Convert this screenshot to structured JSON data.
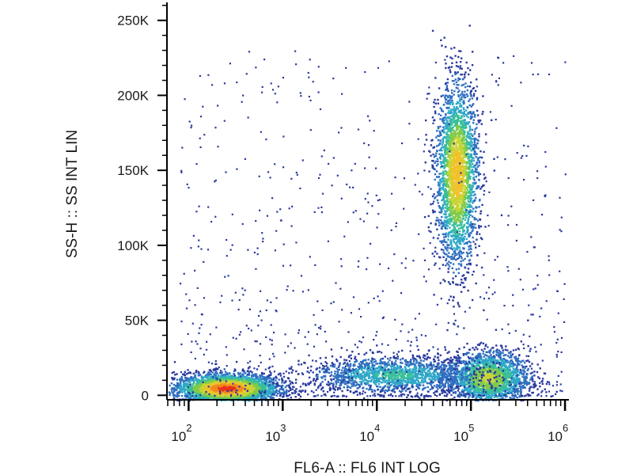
{
  "chart_data": {
    "type": "scatter",
    "subtype": "flow-cytometry-density-dot-plot",
    "xlabel": "FL6-A :: FL6 INT LOG",
    "ylabel": "SS-H :: SS INT LIN",
    "x_scale": "log",
    "xlim": [
      60,
      1100000
    ],
    "ylim": [
      -3000,
      262000
    ],
    "x_ticks": [
      {
        "value": 100,
        "base": "10",
        "exp": "2"
      },
      {
        "value": 1000,
        "base": "10",
        "exp": "3"
      },
      {
        "value": 10000,
        "base": "10",
        "exp": "4"
      },
      {
        "value": 100000,
        "base": "10",
        "exp": "5"
      },
      {
        "value": 1000000,
        "base": "10",
        "exp": "6"
      }
    ],
    "y_ticks": [
      {
        "value": 0,
        "label": "0"
      },
      {
        "value": 50000,
        "label": "50K"
      },
      {
        "value": 100000,
        "label": "100K"
      },
      {
        "value": 150000,
        "label": "150K"
      },
      {
        "value": 200000,
        "label": "200K"
      },
      {
        "value": 250000,
        "label": "250K"
      }
    ],
    "density_colors": [
      "#2b3a9e",
      "#2f6fc0",
      "#2fa8c8",
      "#38bf9a",
      "#7fcb4a",
      "#c8d435",
      "#f0c22a",
      "#f28a1e",
      "#e8321c"
    ],
    "grid": false,
    "legend": "none",
    "populations": [
      {
        "name_hint": "low-FL6 low-SS cluster",
        "x_center": 250,
        "y_center": 5000,
        "x_spread_decades": 0.28,
        "y_spread": 5000,
        "weight": 1.0
      },
      {
        "name_hint": "high-FL6 high-SS cluster",
        "x_center": 70000,
        "y_center": 148000,
        "x_spread_decades": 0.11,
        "y_spread": 30000,
        "weight": 0.8
      },
      {
        "name_hint": "high-FL6 low-SS cluster",
        "x_center": 150000,
        "y_center": 12000,
        "x_spread_decades": 0.22,
        "y_spread": 9000,
        "weight": 0.6
      },
      {
        "name_hint": "intermediate band",
        "x_center": 15000,
        "y_center": 14000,
        "x_spread_decades": 0.45,
        "y_spread": 6000,
        "weight": 0.35
      }
    ]
  }
}
